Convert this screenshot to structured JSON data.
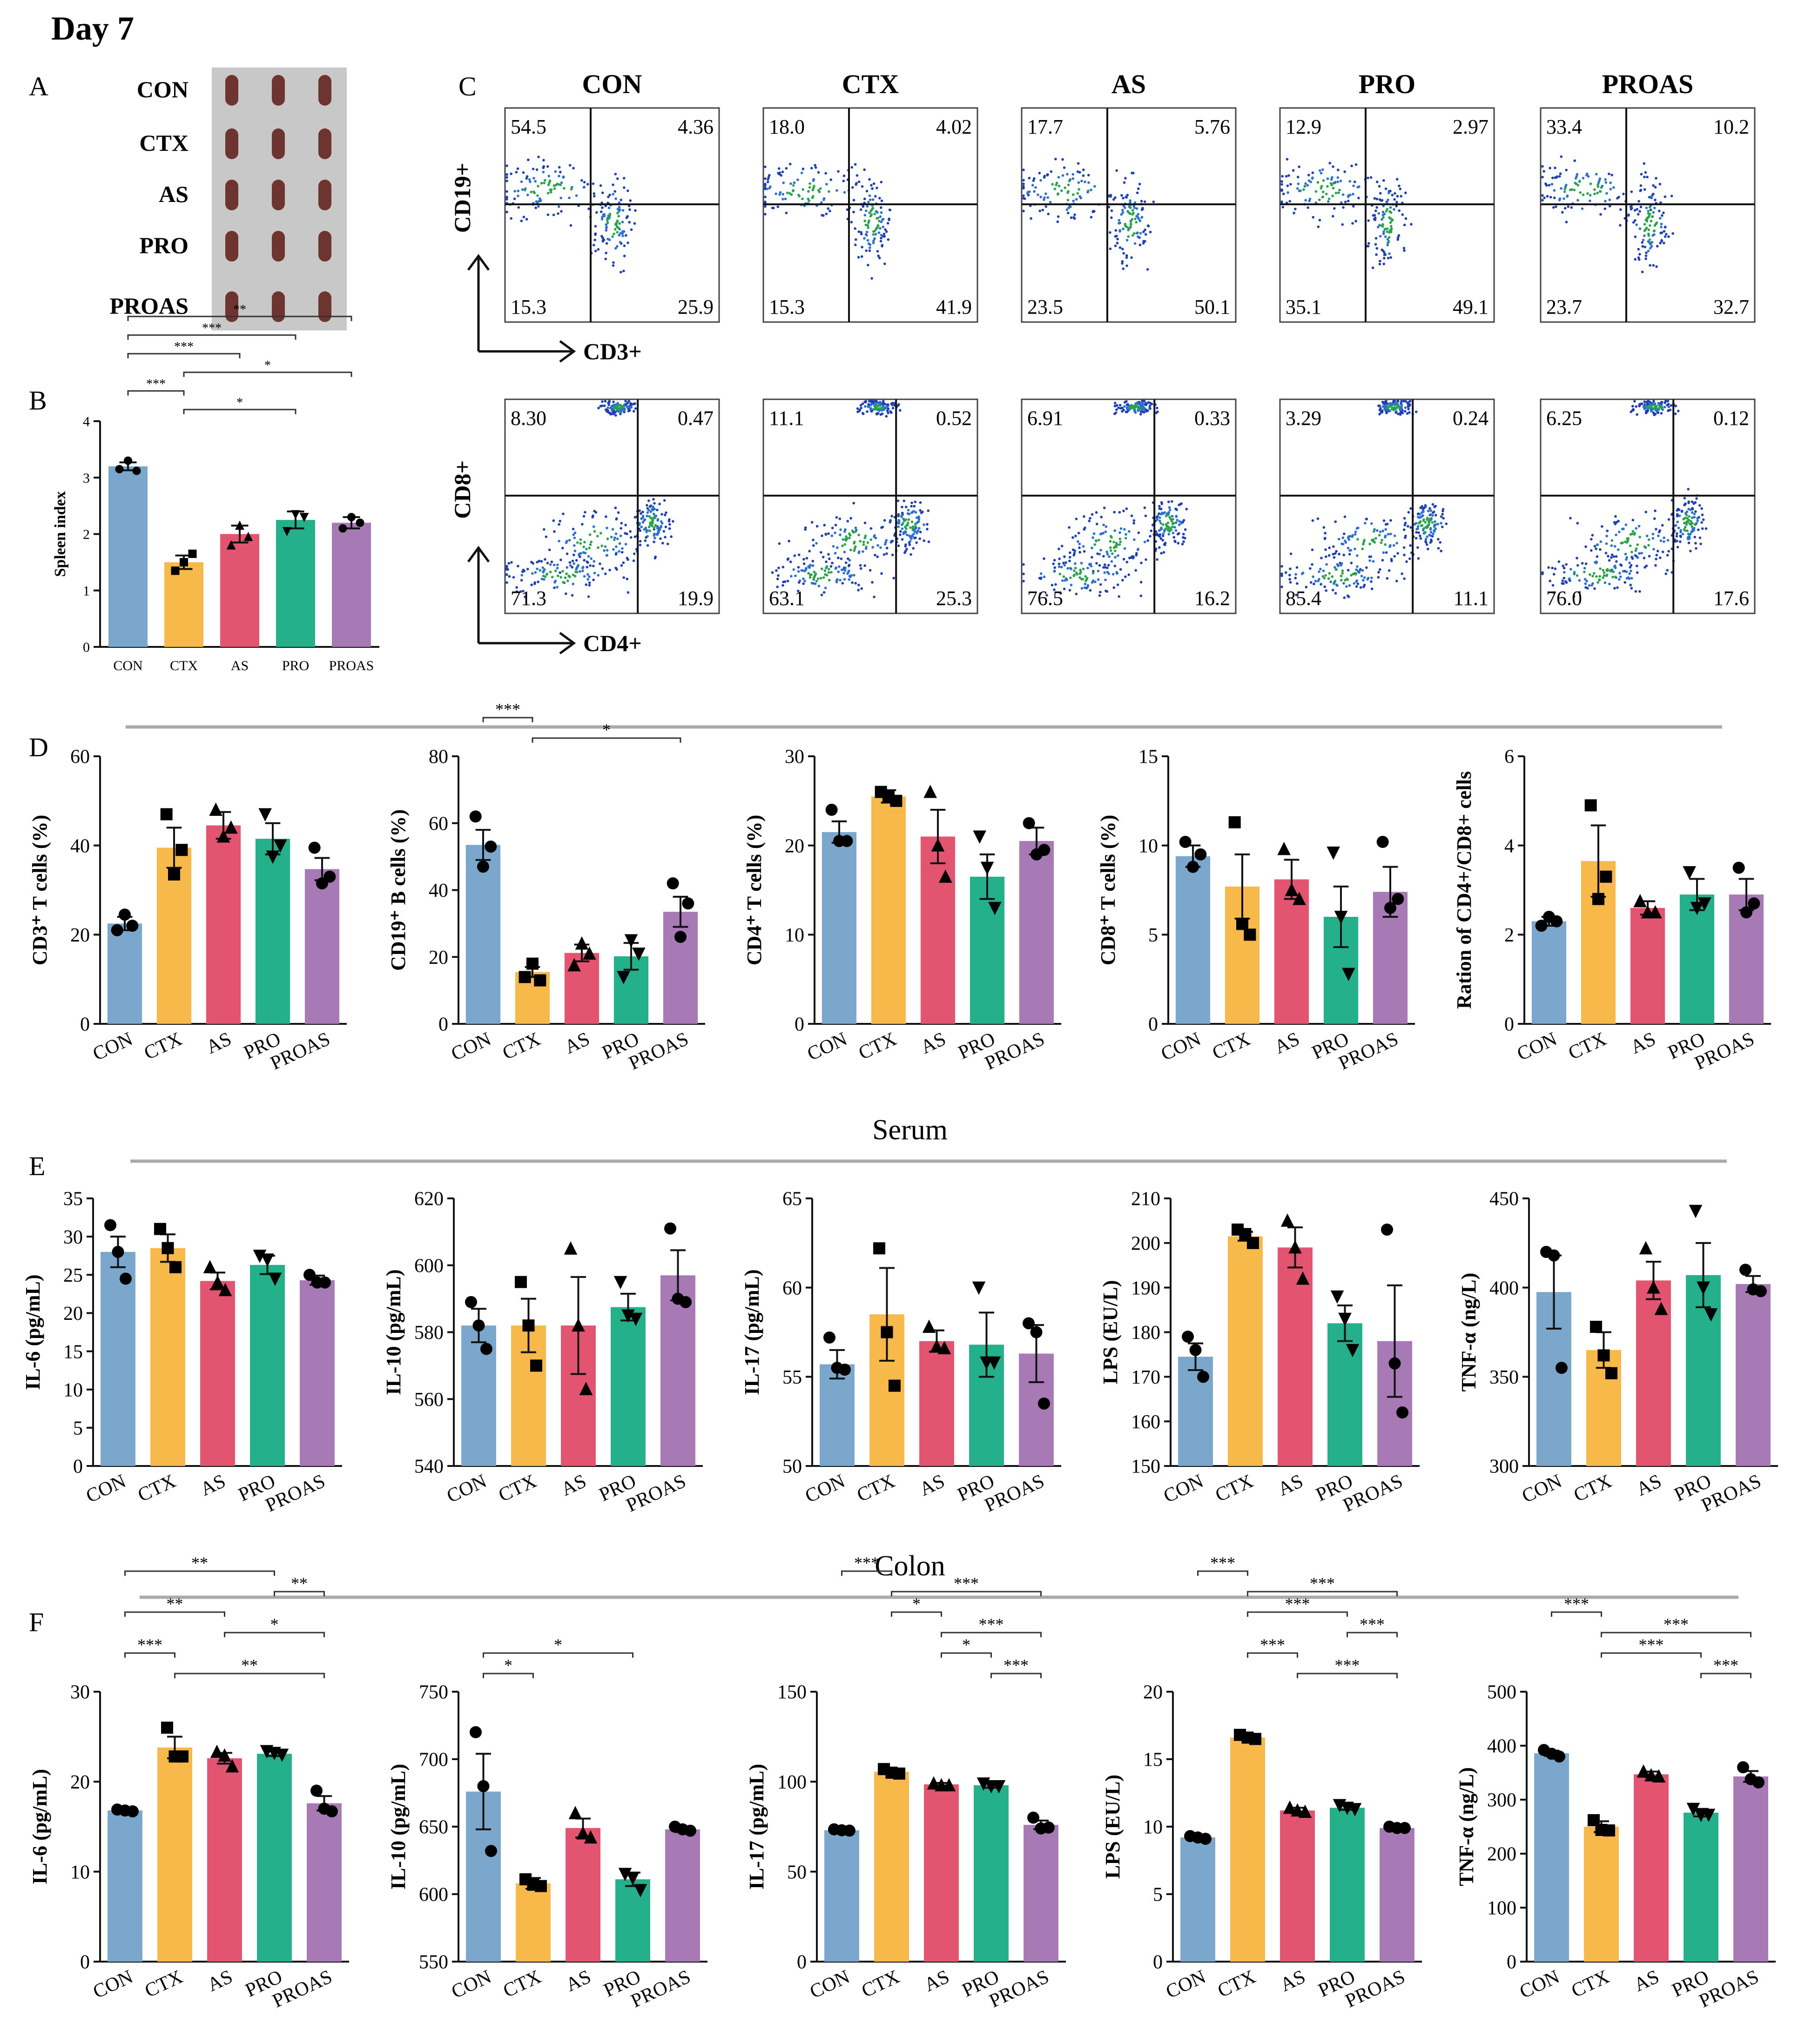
{
  "figure_title": "Day 7",
  "panel_letters": {
    "a": "A",
    "b": "B",
    "c": "C",
    "d": "D",
    "e": "E",
    "f": "F"
  },
  "groups": [
    "CON",
    "CTX",
    "AS",
    "PRO",
    "PROAS"
  ],
  "colors": [
    "#7ba7cc",
    "#f7b94a",
    "#e25470",
    "#24b08a",
    "#a87ab5"
  ],
  "photo_colors": {
    "background": "#c8c8c8",
    "spleen": "#6e3430"
  },
  "section_titles": {
    "serum": "Serum",
    "colon": "Colon"
  },
  "flow": {
    "top_axes": {
      "y": "CD19+",
      "x": "CD3+"
    },
    "bottom_axes": {
      "y": "CD8+",
      "x": "CD4+"
    },
    "top": [
      {
        "ul": "54.5",
        "ur": "4.36",
        "ll": "15.3",
        "lr": "25.9"
      },
      {
        "ul": "18.0",
        "ur": "4.02",
        "ll": "15.3",
        "lr": "41.9"
      },
      {
        "ul": "17.7",
        "ur": "5.76",
        "ll": "23.5",
        "lr": "50.1"
      },
      {
        "ul": "12.9",
        "ur": "2.97",
        "ll": "35.1",
        "lr": "49.1"
      },
      {
        "ul": "33.4",
        "ur": "10.2",
        "ll": "23.7",
        "lr": "32.7"
      }
    ],
    "bottom": [
      {
        "ul": "8.30",
        "ur": "0.47",
        "ll": "71.3",
        "lr": "19.9"
      },
      {
        "ul": "11.1",
        "ur": "0.52",
        "ll": "63.1",
        "lr": "25.3"
      },
      {
        "ul": "6.91",
        "ur": "0.33",
        "ll": "76.5",
        "lr": "16.2"
      },
      {
        "ul": "3.29",
        "ur": "0.24",
        "ll": "85.4",
        "lr": "11.1"
      },
      {
        "ul": "6.25",
        "ur": "0.12",
        "ll": "76.0",
        "lr": "17.6"
      }
    ]
  },
  "chart_data": [
    {
      "id": "B",
      "type": "bar",
      "ylabel": "Spleen index",
      "ylim": [
        0,
        4
      ],
      "ticks": [
        "0",
        "1",
        "2",
        "3",
        "4"
      ],
      "categories": [
        "CON",
        "CTX",
        "AS",
        "PRO",
        "PROAS"
      ],
      "values": [
        3.2,
        1.5,
        2.0,
        2.25,
        2.2
      ],
      "errors": [
        0.07,
        0.12,
        0.15,
        0.15,
        0.1
      ],
      "points": [
        [
          3.15,
          3.3,
          3.12
        ],
        [
          1.35,
          1.5,
          1.65
        ],
        [
          1.8,
          2.15,
          1.95
        ],
        [
          2.05,
          2.35,
          2.3
        ],
        [
          2.1,
          2.3,
          2.2
        ]
      ],
      "sig": [
        {
          "a": 0,
          "b": 4,
          "t": "**"
        },
        {
          "a": 0,
          "b": 3,
          "t": "***"
        },
        {
          "a": 0,
          "b": 2,
          "t": "***"
        },
        {
          "a": 1,
          "b": 4,
          "t": "*"
        },
        {
          "a": 0,
          "b": 1,
          "t": "***"
        },
        {
          "a": 1,
          "b": 3,
          "t": "*"
        }
      ]
    },
    {
      "id": "D1",
      "type": "bar",
      "ylabel": "CD3⁺ T cells (%)",
      "ylim": [
        0,
        60
      ],
      "ticks": [
        "0",
        "20",
        "40",
        "60"
      ],
      "categories": [
        "CON",
        "CTX",
        "AS",
        "PRO",
        "PROAS"
      ],
      "values": [
        22.5,
        39.5,
        44.5,
        41.5,
        34.7
      ],
      "errors": [
        1.5,
        4.5,
        3,
        3.5,
        2.5
      ],
      "points": [
        [
          21,
          24.5,
          22
        ],
        [
          47,
          33.5,
          39
        ],
        [
          48,
          42,
          44
        ],
        [
          47,
          37.5,
          40
        ],
        [
          39.5,
          31.5,
          33
        ]
      ],
      "sig": []
    },
    {
      "id": "D2",
      "type": "bar",
      "ylabel": "CD19⁺ B cells (%)",
      "ylim": [
        0,
        80
      ],
      "ticks": [
        "0",
        "20",
        "40",
        "60",
        "80"
      ],
      "categories": [
        "CON",
        "CTX",
        "AS",
        "PRO",
        "PROAS"
      ],
      "values": [
        53.5,
        15.5,
        21.2,
        20.2,
        33.5
      ],
      "errors": [
        4.5,
        1.5,
        2.5,
        4,
        4.5
      ],
      "points": [
        [
          62,
          47,
          53
        ],
        [
          14,
          18,
          13
        ],
        [
          17.5,
          24,
          21
        ],
        [
          14,
          25,
          21
        ],
        [
          42,
          26,
          36
        ]
      ],
      "sig": [
        {
          "a": 0,
          "b": 1,
          "t": "***"
        },
        {
          "a": 1,
          "b": 4,
          "t": "*"
        }
      ]
    },
    {
      "id": "D3",
      "type": "bar",
      "ylabel": "CD4⁺ T cells (%)",
      "ylim": [
        0,
        30
      ],
      "ticks": [
        "0",
        "10",
        "20",
        "30"
      ],
      "categories": [
        "CON",
        "CTX",
        "AS",
        "PRO",
        "PROAS"
      ],
      "values": [
        21.5,
        25.5,
        21,
        16.5,
        20.5
      ],
      "errors": [
        1.2,
        0.7,
        3,
        2.5,
        1.5
      ],
      "points": [
        [
          24,
          20.5,
          20.5
        ],
        [
          26,
          25.5,
          25
        ],
        [
          26,
          20,
          16.5
        ],
        [
          21,
          17.5,
          13
        ],
        [
          22.5,
          19,
          19.5
        ]
      ],
      "sig": []
    },
    {
      "id": "D4",
      "type": "bar",
      "ylabel": "CD8⁺ T cells (%)",
      "ylim": [
        0,
        15
      ],
      "ticks": [
        "0",
        "5",
        "10",
        "15"
      ],
      "categories": [
        "CON",
        "CTX",
        "AS",
        "PRO",
        "PROAS"
      ],
      "values": [
        9.4,
        7.7,
        8.1,
        6.0,
        7.4
      ],
      "errors": [
        0.6,
        1.8,
        1.1,
        1.7,
        1.4
      ],
      "points": [
        [
          10.2,
          8.8,
          9.5
        ],
        [
          11.3,
          5.6,
          5.0
        ],
        [
          9.8,
          7.5,
          7.0
        ],
        [
          9.6,
          6.0,
          2.8
        ],
        [
          10.2,
          6.5,
          7.0
        ]
      ],
      "sig": []
    },
    {
      "id": "D5",
      "type": "bar",
      "ylabel": "Ration of CD4+/CD8+ cells",
      "ylim": [
        0,
        6
      ],
      "ticks": [
        "0",
        "2",
        "4",
        "6"
      ],
      "categories": [
        "CON",
        "CTX",
        "AS",
        "PRO",
        "PROAS"
      ],
      "values": [
        2.3,
        3.65,
        2.6,
        2.9,
        2.9
      ],
      "errors": [
        0.1,
        0.8,
        0.15,
        0.35,
        0.35
      ],
      "points": [
        [
          2.2,
          2.4,
          2.3
        ],
        [
          4.9,
          2.8,
          3.3
        ],
        [
          2.75,
          2.5,
          2.5
        ],
        [
          3.4,
          2.6,
          2.7
        ],
        [
          3.5,
          2.5,
          2.7
        ]
      ],
      "sig": []
    },
    {
      "id": "E1",
      "type": "bar",
      "ylabel": "IL-6 (pg/mL)",
      "ylim": [
        0,
        35
      ],
      "ticks": [
        "0",
        "5",
        "10",
        "15",
        "20",
        "25",
        "30",
        "35"
      ],
      "categories": [
        "CON",
        "CTX",
        "AS",
        "PRO",
        "PROAS"
      ],
      "values": [
        28,
        28.5,
        24.2,
        26.3,
        24.3
      ],
      "errors": [
        2,
        1.8,
        1.1,
        1.2,
        0.6
      ],
      "points": [
        [
          31.5,
          28,
          24.5
        ],
        [
          31,
          28.5,
          26
        ],
        [
          26,
          24,
          23
        ],
        [
          27.5,
          27,
          24.5
        ],
        [
          25,
          24,
          24
        ]
      ],
      "sig": []
    },
    {
      "id": "E2",
      "type": "bar",
      "ylabel": "IL-10 (pg/mL)",
      "ylim": [
        540,
        620
      ],
      "ticks": [
        "540",
        "560",
        "580",
        "600",
        "620"
      ],
      "categories": [
        "CON",
        "CTX",
        "AS",
        "PRO",
        "PROAS"
      ],
      "values": [
        582,
        582,
        582,
        587.5,
        597
      ],
      "errors": [
        5,
        8,
        14.5,
        4,
        7.5
      ],
      "points": [
        [
          589,
          582,
          575
        ],
        [
          595,
          582,
          570
        ],
        [
          605,
          582,
          563
        ],
        [
          595,
          585,
          584
        ],
        [
          611,
          590,
          589
        ]
      ],
      "sig": []
    },
    {
      "id": "E3",
      "type": "bar",
      "ylabel": "IL-17 (pg/mL)",
      "ylim": [
        50,
        65
      ],
      "ticks": [
        "50",
        "55",
        "60",
        "65"
      ],
      "categories": [
        "CON",
        "CTX",
        "AS",
        "PRO",
        "PROAS"
      ],
      "values": [
        55.7,
        58.5,
        57,
        56.8,
        56.3
      ],
      "errors": [
        0.8,
        2.6,
        0.6,
        1.8,
        1.6
      ],
      "points": [
        [
          57.2,
          55.5,
          55.4
        ],
        [
          62.2,
          57.5,
          54.5
        ],
        [
          57.8,
          56.7,
          56.6
        ],
        [
          60,
          55.8,
          55.8
        ],
        [
          58,
          57.5,
          53.5
        ]
      ],
      "sig": []
    },
    {
      "id": "E4",
      "type": "bar",
      "ylabel": "LPS (EU/L)",
      "ylim": [
        150,
        210
      ],
      "ticks": [
        "150",
        "160",
        "170",
        "180",
        "190",
        "200",
        "210"
      ],
      "categories": [
        "CON",
        "CTX",
        "AS",
        "PRO",
        "PROAS"
      ],
      "values": [
        174.5,
        201.5,
        199,
        182,
        178
      ],
      "errors": [
        3,
        1,
        4.5,
        4,
        12.5
      ],
      "points": [
        [
          179,
          176,
          170
        ],
        [
          203,
          202,
          200
        ],
        [
          205,
          199,
          192
        ],
        [
          188,
          183,
          176
        ],
        [
          203,
          173,
          162
        ]
      ],
      "sig": []
    },
    {
      "id": "E5",
      "type": "bar",
      "ylabel": "TNF-α (ng/L)",
      "ylim": [
        300,
        450
      ],
      "ticks": [
        "300",
        "350",
        "400",
        "450"
      ],
      "categories": [
        "CON",
        "CTX",
        "AS",
        "PRO",
        "PROAS"
      ],
      "values": [
        397.5,
        365,
        404,
        407,
        402
      ],
      "errors": [
        20.5,
        10,
        10.5,
        18,
        4.5
      ],
      "points": [
        [
          420,
          418,
          355
        ],
        [
          378,
          362,
          352
        ],
        [
          422,
          400,
          388
        ],
        [
          443,
          400,
          385
        ],
        [
          410,
          399,
          398
        ]
      ],
      "sig": []
    },
    {
      "id": "F1",
      "type": "bar",
      "ylabel": "IL-6 (pg/mL)",
      "ylim": [
        0,
        30
      ],
      "ticks": [
        "0",
        "10",
        "20",
        "30"
      ],
      "categories": [
        "CON",
        "CTX",
        "AS",
        "PRO",
        "PROAS"
      ],
      "values": [
        16.8,
        23.8,
        22.6,
        23.1,
        17.6
      ],
      "errors": [
        0.15,
        1.2,
        0.6,
        0.25,
        0.8
      ],
      "points": [
        [
          16.9,
          16.8,
          16.7
        ],
        [
          26,
          22.8,
          22.8
        ],
        [
          23.3,
          22.9,
          21.7
        ],
        [
          23.4,
          23.2,
          23.0
        ],
        [
          19,
          17.0,
          16.7
        ]
      ],
      "sig": [
        {
          "a": 0,
          "b": 3,
          "t": "**"
        },
        {
          "a": 3,
          "b": 4,
          "t": "**"
        },
        {
          "a": 0,
          "b": 2,
          "t": "**"
        },
        {
          "a": 2,
          "b": 4,
          "t": "*"
        },
        {
          "a": 0,
          "b": 1,
          "t": "***"
        },
        {
          "a": 1,
          "b": 4,
          "t": "**"
        }
      ]
    },
    {
      "id": "F2",
      "type": "bar",
      "ylabel": "IL-10 (pg/mL)",
      "ylim": [
        550,
        750
      ],
      "ticks": [
        "550",
        "600",
        "650",
        "700",
        "750"
      ],
      "categories": [
        "CON",
        "CTX",
        "AS",
        "PRO",
        "PROAS"
      ],
      "values": [
        676,
        608,
        649,
        611,
        648
      ],
      "errors": [
        28,
        4,
        7,
        5,
        2
      ],
      "points": [
        [
          720,
          680,
          632
        ],
        [
          611,
          607,
          606
        ],
        [
          660,
          645,
          642
        ],
        [
          615,
          612,
          603
        ],
        [
          650,
          648,
          647
        ]
      ],
      "sig": [
        {
          "a": 0,
          "b": 3,
          "t": "*"
        },
        {
          "a": 0,
          "b": 1,
          "t": "*"
        }
      ]
    },
    {
      "id": "F3",
      "type": "bar",
      "ylabel": "IL-17 (pg/mL)",
      "ylim": [
        0,
        150
      ],
      "ticks": [
        "0",
        "50",
        "100",
        "150"
      ],
      "categories": [
        "CON",
        "CTX",
        "AS",
        "PRO",
        "PROAS"
      ],
      "values": [
        73,
        105.5,
        98.5,
        98,
        76
      ],
      "errors": [
        0.4,
        1.3,
        0.8,
        1.4,
        2.4
      ],
      "points": [
        [
          73.5,
          73,
          72.8
        ],
        [
          107,
          105,
          104.5
        ],
        [
          99,
          98,
          98
        ],
        [
          99,
          97.5,
          97.5
        ],
        [
          80,
          74,
          74.5
        ]
      ],
      "sig": [
        {
          "a": 0,
          "b": 1,
          "t": "***"
        },
        {
          "a": 1,
          "b": 4,
          "t": "***"
        },
        {
          "a": 1,
          "b": 2,
          "t": "*"
        },
        {
          "a": 2,
          "b": 4,
          "t": "***"
        },
        {
          "a": 2,
          "b": 3,
          "t": "*"
        },
        {
          "a": 3,
          "b": 4,
          "t": "***"
        }
      ]
    },
    {
      "id": "F4",
      "type": "bar",
      "ylabel": "LPS (EU/L)",
      "ylim": [
        0,
        20
      ],
      "ticks": [
        "0",
        "5",
        "10",
        "15",
        "20"
      ],
      "categories": [
        "CON",
        "CTX",
        "AS",
        "PRO",
        "PROAS"
      ],
      "values": [
        9.2,
        16.6,
        11.2,
        11.4,
        9.9
      ],
      "errors": [
        0.1,
        0.15,
        0.2,
        0.15,
        0.05
      ],
      "points": [
        [
          9.3,
          9.2,
          9.1
        ],
        [
          16.8,
          16.6,
          16.5
        ],
        [
          11.4,
          11.2,
          11.1
        ],
        [
          11.6,
          11.4,
          11.3
        ],
        [
          10,
          9.9,
          9.9
        ]
      ],
      "sig": [
        {
          "a": 0,
          "b": 1,
          "t": "***"
        },
        {
          "a": 1,
          "b": 4,
          "t": "***"
        },
        {
          "a": 1,
          "b": 3,
          "t": "***"
        },
        {
          "a": 3,
          "b": 4,
          "t": "***"
        },
        {
          "a": 1,
          "b": 2,
          "t": "***"
        },
        {
          "a": 2,
          "b": 4,
          "t": "***"
        }
      ]
    },
    {
      "id": "F5",
      "type": "bar",
      "ylabel": "TNF-α (ng/L)",
      "ylim": [
        0,
        500
      ],
      "ticks": [
        "0",
        "100",
        "200",
        "300",
        "400",
        "500"
      ],
      "categories": [
        "CON",
        "CTX",
        "AS",
        "PRO",
        "PROAS"
      ],
      "values": [
        386,
        250,
        347,
        276,
        343
      ],
      "errors": [
        5,
        10,
        5,
        7,
        10
      ],
      "points": [
        [
          392,
          385,
          380
        ],
        [
          262,
          244,
          243
        ],
        [
          352,
          345,
          343
        ],
        [
          283,
          272,
          272
        ],
        [
          360,
          338,
          332
        ]
      ],
      "sig": [
        {
          "a": 0,
          "b": 1,
          "t": "***"
        },
        {
          "a": 1,
          "b": 4,
          "t": "***"
        },
        {
          "a": 1,
          "b": 3,
          "t": "***"
        },
        {
          "a": 3,
          "b": 4,
          "t": "***"
        }
      ]
    }
  ]
}
